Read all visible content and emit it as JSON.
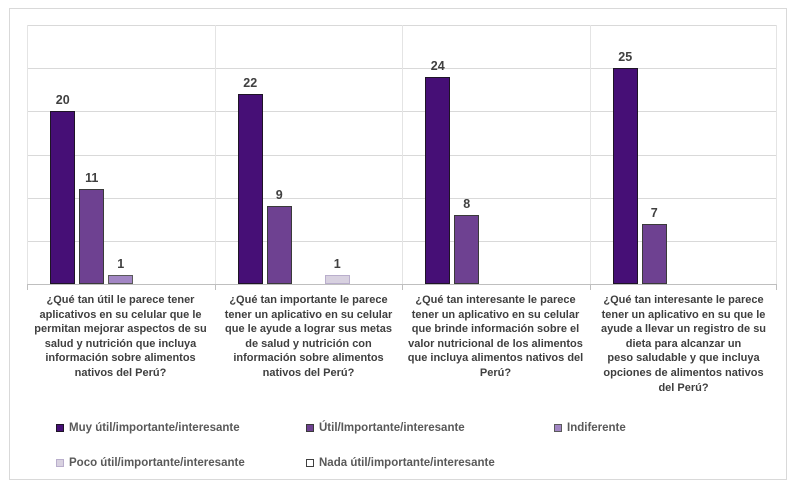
{
  "chart_data": {
    "type": "bar",
    "title": "",
    "xlabel": "",
    "ylabel": "",
    "ylim": [
      0,
      30
    ],
    "gridline_step": 5,
    "grid": true,
    "legend_position": "bottom-left-two-rows",
    "categories": [
      {
        "label": "¿Qué tan útil le parece tener\naplicativos en su celular que le\npermitan mejorar aspectos de su\nsalud y nutrición que incluya\ninformación sobre alimentos\nnativos del Perú?"
      },
      {
        "label": "¿Qué tan importante le parece\ntener un aplicativo en su celular\nque le ayude a lograr sus metas\nde salud y nutrición con\ninformación sobre alimentos\nnativos del Perú?"
      },
      {
        "label": "¿Qué tan interesante le parece\ntener un aplicativo en su celular\nque brinde información sobre el\nvalor nutricional de los alimentos\nque incluya alimentos nativos del\nPerú?"
      },
      {
        "label": "¿Qué tan interesante le parece\ntener un aplicativo en su que le\nayude a llevar un registro de su\ndieta para alcanzar un\npeso saludable y que incluya\nopciones de alimentos nativos\ndel Perú?"
      }
    ],
    "series": [
      {
        "name": "Muy útil/importante/interesante",
        "color": "#460F76",
        "border": "#1E1426",
        "values": [
          20,
          22,
          24,
          25
        ]
      },
      {
        "name": "Útil/Importante/interesante",
        "color": "#6E4191",
        "border": "#3A3A3A",
        "values": [
          11,
          9,
          8,
          7
        ]
      },
      {
        "name": "Indiferente",
        "color": "#A286C4",
        "border": "#5A5A5A",
        "values": [
          1,
          0,
          0,
          0
        ]
      },
      {
        "name": "Poco útil/importante/interesante",
        "color": "#D8D1E0",
        "border": "#B9AECC",
        "values": [
          0,
          1,
          0,
          0
        ]
      },
      {
        "name": "Nada útil/importante/interesante",
        "color": "#FFFFFF",
        "border": "#404040",
        "values": [
          0,
          0,
          0,
          0
        ]
      }
    ]
  },
  "colors": {
    "background": "#FFFFFF",
    "chart_border": "#D9D9D9",
    "gridline": "#D9D9D9",
    "category_separator": "#E4E4E4",
    "axis": "#BFBFBF",
    "value_label": "#404040",
    "category_label": "#3F3F3F",
    "legend_label": "#595959"
  }
}
